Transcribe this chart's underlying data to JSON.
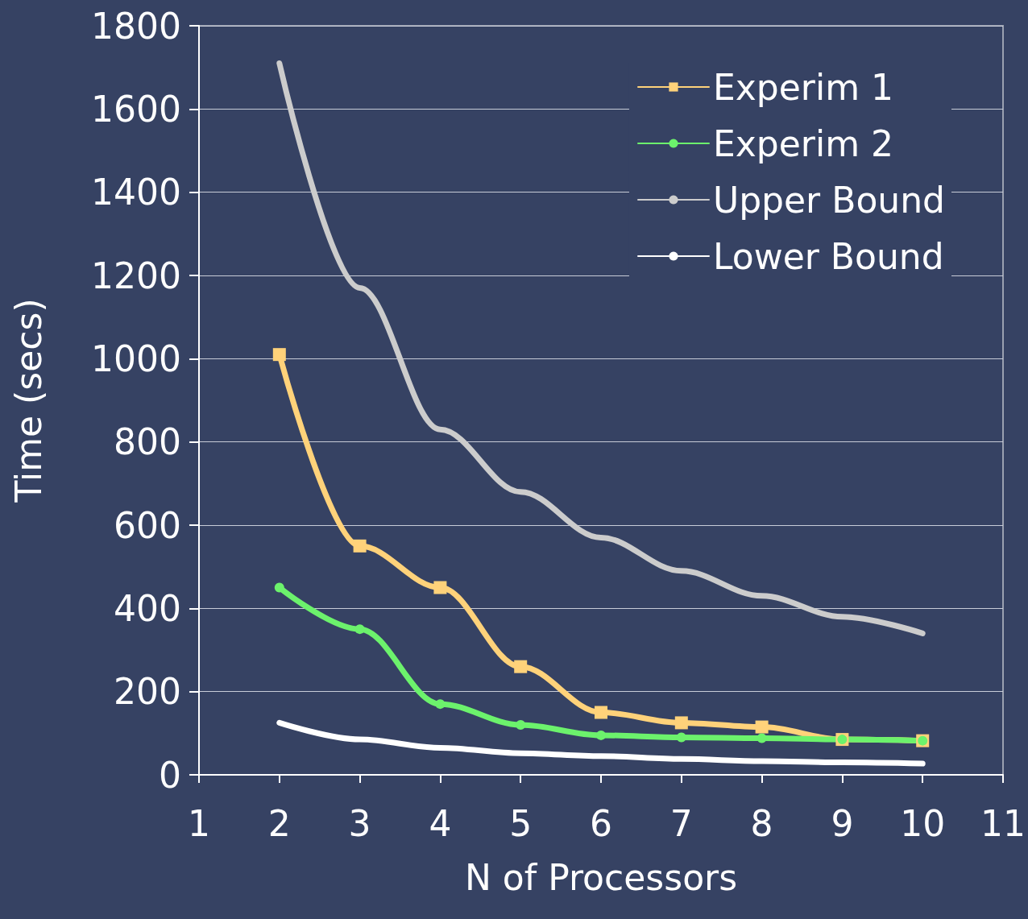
{
  "chart_data": {
    "type": "line",
    "xlabel": "N of Processors",
    "ylabel": "Time (secs)",
    "x": [
      2,
      3,
      4,
      5,
      6,
      7,
      8,
      9,
      10
    ],
    "xlim": [
      1,
      11
    ],
    "xticks": [
      1,
      2,
      3,
      4,
      5,
      6,
      7,
      8,
      9,
      10,
      11
    ],
    "ylim": [
      0,
      1800
    ],
    "yticks": [
      0,
      200,
      400,
      600,
      800,
      1000,
      1200,
      1400,
      1600,
      1800
    ],
    "grid": "y",
    "legend": "top right",
    "line_style": "solid",
    "series": [
      {
        "name": "Experim 1",
        "color": "#ffd27a",
        "marker": "square",
        "values": [
          1010,
          550,
          450,
          260,
          150,
          125,
          115,
          85,
          82
        ]
      },
      {
        "name": "Experim 2",
        "color": "#6cf26c",
        "marker": "circle",
        "values": [
          450,
          350,
          170,
          120,
          95,
          90,
          88,
          85,
          82
        ]
      },
      {
        "name": "Upper Bound",
        "color": "#cccccc",
        "marker": "none",
        "values": [
          1710,
          1170,
          830,
          680,
          570,
          490,
          430,
          380,
          340
        ]
      },
      {
        "name": "Lower Bound",
        "color": "#ffffff",
        "marker": "none",
        "values": [
          125,
          85,
          65,
          52,
          45,
          38,
          33,
          30,
          27
        ]
      }
    ]
  }
}
